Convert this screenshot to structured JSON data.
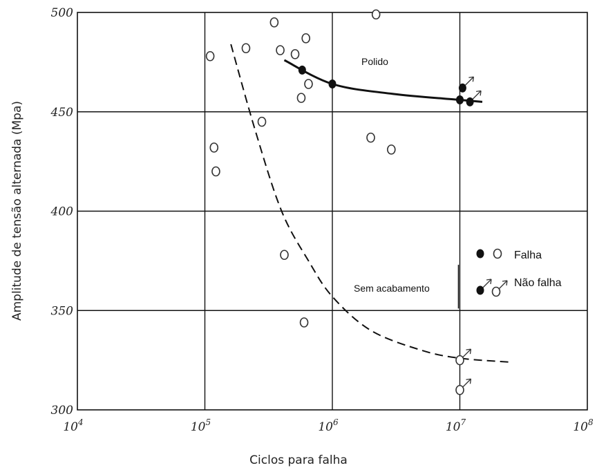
{
  "chart_data": {
    "type": "scatter",
    "xlabel": "Ciclos para falha",
    "ylabel": "Amplitude de tensão alternada (Mpa)",
    "xscale": "log",
    "xlim": [
      10000,
      100000000
    ],
    "ylim": [
      300,
      500
    ],
    "grid": true,
    "x_ticks": [
      {
        "value": 10000,
        "base": "10",
        "exp": "4"
      },
      {
        "value": 100000,
        "base": "10",
        "exp": "5"
      },
      {
        "value": 1000000,
        "base": "10",
        "exp": "6"
      },
      {
        "value": 10000000,
        "base": "10",
        "exp": "7"
      },
      {
        "value": 100000000,
        "base": "10",
        "exp": "8"
      }
    ],
    "y_ticks": [
      "300",
      "350",
      "400",
      "450",
      "500"
    ],
    "series": [
      {
        "name": "Polido",
        "marker": "filled",
        "points": [
          {
            "x": 580000,
            "y": 471,
            "runout": false
          },
          {
            "x": 1000000,
            "y": 464,
            "runout": false
          },
          {
            "x": 10000000,
            "y": 456,
            "runout": false
          },
          {
            "x": 10500000,
            "y": 462,
            "runout": true
          },
          {
            "x": 12000000,
            "y": 455,
            "runout": true
          }
        ],
        "curve": [
          [
            420000,
            476
          ],
          [
            1000000,
            464
          ],
          [
            3000000,
            459
          ],
          [
            10000000,
            456
          ],
          [
            15000000,
            455
          ]
        ],
        "curve_style": "solid"
      },
      {
        "name": "Sem acabamento",
        "marker": "open",
        "points": [
          {
            "x": 110000,
            "y": 478,
            "runout": false
          },
          {
            "x": 118000,
            "y": 432,
            "runout": false
          },
          {
            "x": 122000,
            "y": 420,
            "runout": false
          },
          {
            "x": 210000,
            "y": 482,
            "runout": false
          },
          {
            "x": 280000,
            "y": 445,
            "runout": false
          },
          {
            "x": 350000,
            "y": 495,
            "runout": false
          },
          {
            "x": 390000,
            "y": 481,
            "runout": false
          },
          {
            "x": 420000,
            "y": 378,
            "runout": false
          },
          {
            "x": 510000,
            "y": 479,
            "runout": false
          },
          {
            "x": 570000,
            "y": 457,
            "runout": false
          },
          {
            "x": 600000,
            "y": 344,
            "runout": false
          },
          {
            "x": 620000,
            "y": 487,
            "runout": false
          },
          {
            "x": 650000,
            "y": 464,
            "runout": false
          },
          {
            "x": 2000000,
            "y": 437,
            "runout": false
          },
          {
            "x": 2200000,
            "y": 499,
            "runout": false
          },
          {
            "x": 2900000,
            "y": 431,
            "runout": false
          },
          {
            "x": 10000000,
            "y": 325,
            "runout": true
          },
          {
            "x": 10000000,
            "y": 310,
            "runout": true
          }
        ],
        "curve": [
          [
            160000,
            484
          ],
          [
            250000,
            440
          ],
          [
            400000,
            400
          ],
          [
            650000,
            375
          ],
          [
            1000000,
            357
          ],
          [
            2000000,
            340
          ],
          [
            5000000,
            330
          ],
          [
            10000000,
            326
          ],
          [
            25000000,
            324
          ]
        ],
        "curve_style": "dashed"
      }
    ],
    "annotations": [
      "Polido",
      "Sem acabamento"
    ],
    "legend": {
      "position": "right",
      "entries": [
        {
          "label": "Falha",
          "symbols": [
            "filled",
            "open"
          ]
        },
        {
          "label": "Não falha",
          "symbols": [
            "filled-arrow",
            "open-arrow"
          ]
        }
      ]
    }
  }
}
